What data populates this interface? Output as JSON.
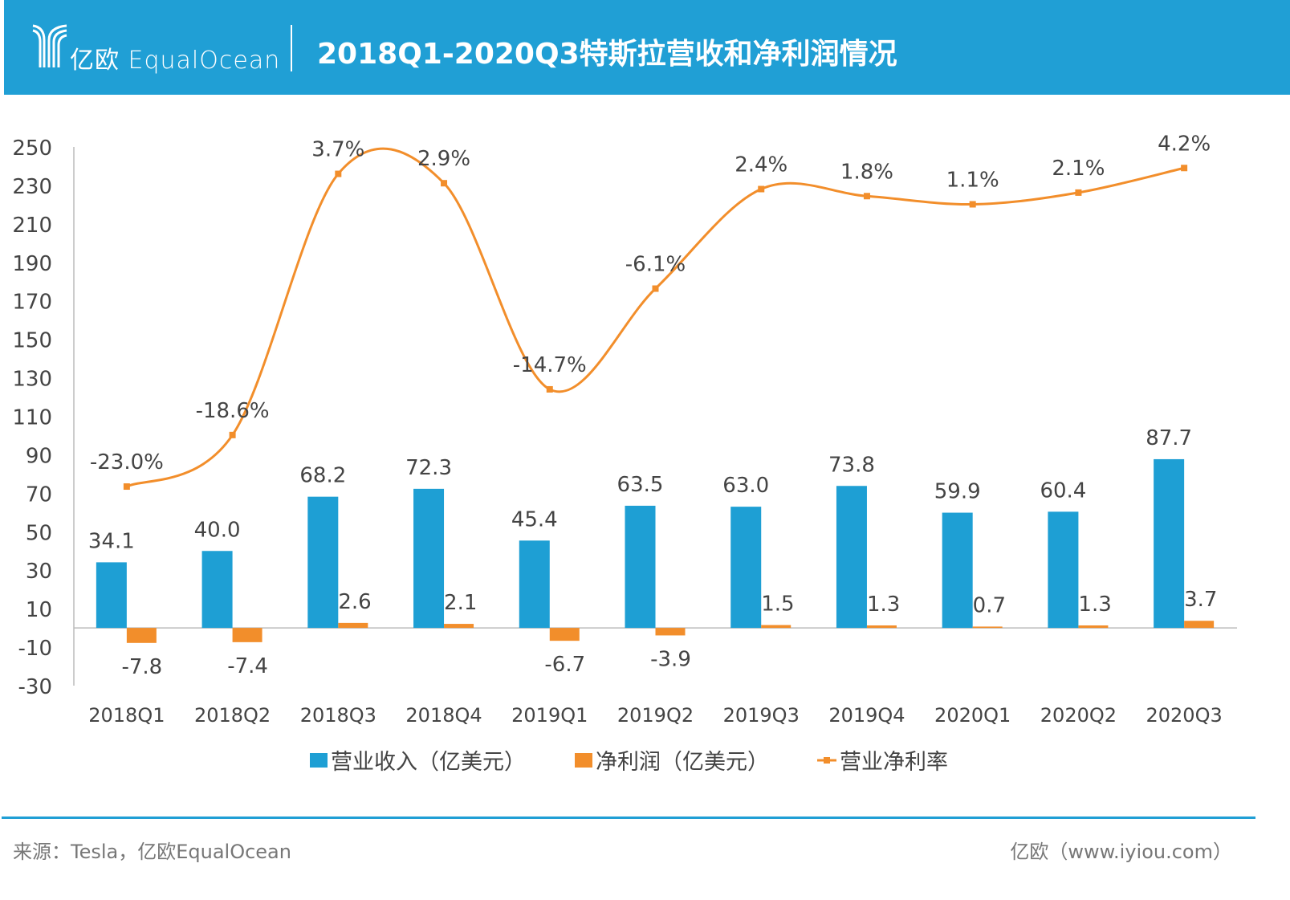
{
  "header": {
    "logo_text": "亿欧 EqualOcean",
    "title": "2018Q1-2020Q3特斯拉营收和净利润情况"
  },
  "footer": {
    "source": "来源：Tesla，亿欧EqualOcean",
    "site": "亿欧（www.iyiou.com）"
  },
  "colors": {
    "header": "#209fd5",
    "revenue": "#1e9fd4",
    "profit": "#f28e2b",
    "margin": "#f28e2b"
  },
  "chart_data": {
    "type": "bar+line",
    "categories": [
      "2018Q1",
      "2018Q2",
      "2018Q3",
      "2018Q4",
      "2019Q1",
      "2019Q2",
      "2019Q3",
      "2019Q4",
      "2020Q1",
      "2020Q2",
      "2020Q3"
    ],
    "ylim": [
      -30,
      250
    ],
    "yticks": [
      250,
      230,
      210,
      190,
      170,
      150,
      130,
      110,
      90,
      70,
      50,
      30,
      10,
      -10,
      -30
    ],
    "secondary_ylim_hidden": [
      -40,
      6
    ],
    "series": [
      {
        "name": "营业收入（亿美元）",
        "type": "bar",
        "values": [
          34.1,
          40.0,
          68.2,
          72.3,
          45.4,
          63.5,
          63.0,
          73.8,
          59.9,
          60.4,
          87.7
        ],
        "labels": [
          "34.1",
          "40.0",
          "68.2",
          "72.3",
          "45.4",
          "63.5",
          "63.0",
          "73.8",
          "59.9",
          "60.4",
          "87.7"
        ]
      },
      {
        "name": "净利润（亿美元）",
        "type": "bar",
        "values": [
          -7.8,
          -7.4,
          2.6,
          2.1,
          -6.7,
          -3.9,
          1.5,
          1.3,
          0.7,
          1.3,
          3.7
        ],
        "labels": [
          "-7.8",
          "-7.4",
          "2.6",
          "2.1",
          "-6.7",
          "-3.9",
          "1.5",
          "1.3",
          "0.7",
          "1.3",
          "3.7"
        ]
      },
      {
        "name": "营业净利率",
        "type": "line",
        "smooth": true,
        "axis": "secondary",
        "values": [
          -23.0,
          -18.6,
          3.7,
          2.9,
          -14.7,
          -6.1,
          2.4,
          1.8,
          1.1,
          2.1,
          4.2
        ],
        "labels": [
          "-23.0%",
          "-18.6%",
          "3.7%",
          "2.9%",
          "-14.7%",
          "-6.1%",
          "2.4%",
          "1.8%",
          "1.1%",
          "2.1%",
          "4.2%"
        ]
      }
    ],
    "legend": "bottom",
    "grid": false
  }
}
